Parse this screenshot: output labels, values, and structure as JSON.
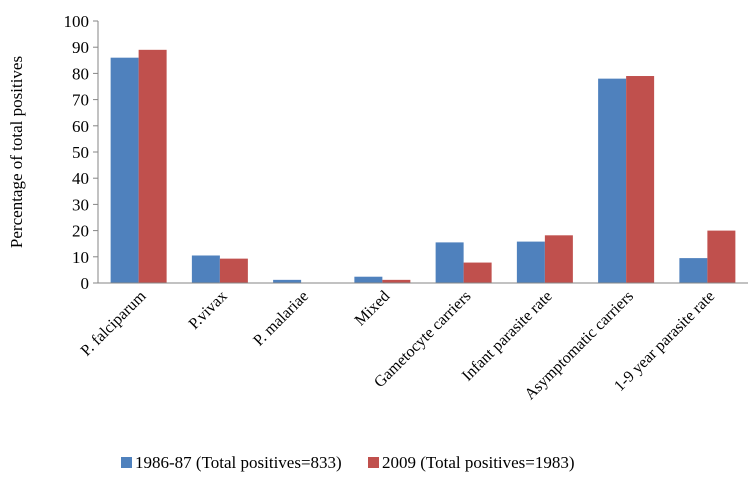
{
  "chart_data": {
    "type": "bar",
    "title": "",
    "xlabel": "",
    "ylabel": "Percentage of total positives",
    "ylim": [
      0,
      100
    ],
    "ytick_step": 10,
    "grid": false,
    "legend_position": "bottom",
    "categories": [
      "P. falciparum",
      "P.vivax",
      "P. malariae",
      "Mixed",
      "Gametocyte carriers",
      "Infant parasite rate",
      "Asymptomatic carriers",
      "1-9 year parasite rate"
    ],
    "series": [
      {
        "name": "1986-87 (Total positives=833)",
        "color": "#4f81bd",
        "values": [
          86,
          10.5,
          1.2,
          2.4,
          15.5,
          15.8,
          78,
          9.5
        ]
      },
      {
        "name": "2009 (Total positives=1983)",
        "color": "#c0504d",
        "values": [
          89,
          9.3,
          0,
          1.2,
          7.8,
          18.2,
          79,
          20
        ]
      }
    ]
  }
}
